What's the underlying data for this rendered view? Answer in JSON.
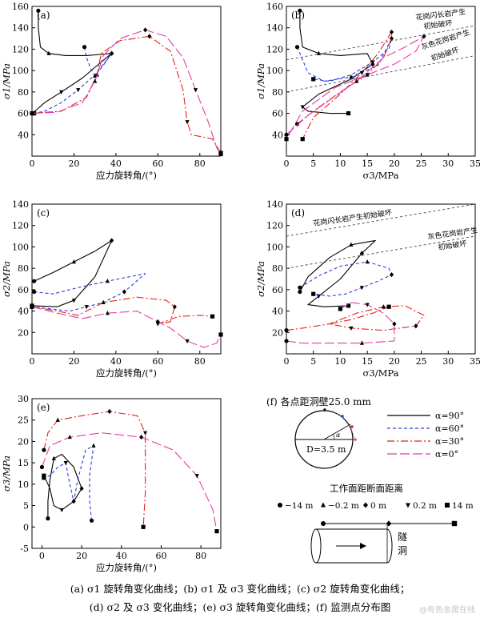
{
  "colors": {
    "a90": "#000000",
    "a60": "#2b3bdc",
    "a30": "#e0231c",
    "a0": "#e63aa8"
  },
  "chart_data": [
    {
      "id": "a",
      "type": "line",
      "panel_label": "(a)",
      "xlabel": "应力旋转角/(°)",
      "ylabel": "σ1/MPa",
      "xlim": [
        0,
        90
      ],
      "ylim": [
        20,
        160
      ],
      "xticks": [
        0,
        20,
        40,
        60,
        80
      ],
      "yticks": [
        40,
        60,
        80,
        100,
        120,
        140,
        160
      ],
      "series": [
        {
          "name": "α=90°",
          "points": [
            [
              3,
              156
            ],
            [
              3,
              140
            ],
            [
              4,
              122
            ],
            [
              8,
              116
            ],
            [
              16,
              114
            ],
            [
              26,
              114
            ],
            [
              38,
              116
            ],
            [
              33,
              108
            ],
            [
              24,
              93
            ],
            [
              14,
              80
            ],
            [
              6,
              70
            ],
            [
              2,
              63
            ],
            [
              0,
              60
            ]
          ]
        },
        {
          "name": "α=60°",
          "points": [
            [
              25,
              122
            ],
            [
              26,
              112
            ],
            [
              28,
              102
            ],
            [
              30,
              95
            ],
            [
              34,
              105
            ],
            [
              38,
              116
            ],
            [
              30,
              96
            ],
            [
              22,
              82
            ],
            [
              14,
              70
            ],
            [
              6,
              62
            ],
            [
              1,
              60
            ]
          ]
        },
        {
          "name": "α=30°",
          "points": [
            [
              0,
              60
            ],
            [
              14,
              62
            ],
            [
              26,
              75
            ],
            [
              31,
              96
            ],
            [
              33,
              116
            ],
            [
              42,
              128
            ],
            [
              56,
              132
            ],
            [
              66,
              118
            ],
            [
              72,
              82
            ],
            [
              74,
              52
            ],
            [
              76,
              40
            ],
            [
              86,
              36
            ],
            [
              90,
              23
            ]
          ]
        },
        {
          "name": "α=0°",
          "points": [
            [
              0,
              60
            ],
            [
              12,
              61
            ],
            [
              24,
              70
            ],
            [
              30,
              90
            ],
            [
              34,
              114
            ],
            [
              42,
              130
            ],
            [
              54,
              138
            ],
            [
              64,
              132
            ],
            [
              72,
              112
            ],
            [
              78,
              82
            ],
            [
              84,
              52
            ],
            [
              88,
              28
            ],
            [
              90,
              22
            ]
          ]
        }
      ]
    },
    {
      "id": "b",
      "type": "line",
      "panel_label": "(b)",
      "xlabel": "σ3/MPa",
      "ylabel": "σ1/MPa",
      "xlim": [
        0,
        35
      ],
      "ylim": [
        20,
        160
      ],
      "xticks": [
        0,
        5,
        10,
        15,
        20,
        25,
        30,
        35
      ],
      "yticks": [
        40,
        60,
        80,
        100,
        120,
        140,
        160
      ],
      "annotations": [
        "花岗闪长岩产生",
        "初始破坏",
        "灰色花岗岩产生",
        "初始破坏"
      ],
      "series": [
        {
          "name": "α=90°",
          "points": [
            [
              2.5,
              156
            ],
            [
              2.5,
              140
            ],
            [
              3,
              122
            ],
            [
              6,
              116
            ],
            [
              10,
              114
            ],
            [
              15,
              116
            ],
            [
              16,
              106
            ],
            [
              12,
              92
            ],
            [
              6,
              78
            ],
            [
              3,
              66
            ],
            [
              4,
              62
            ],
            [
              8,
              60
            ],
            [
              11.5,
              60
            ]
          ]
        },
        {
          "name": "α=60°",
          "points": [
            [
              2,
              122
            ],
            [
              4,
              98
            ],
            [
              7,
              90
            ],
            [
              12,
              94
            ],
            [
              17,
              105
            ],
            [
              19.5,
              130
            ],
            [
              19,
              120
            ],
            [
              16,
              108
            ],
            [
              12,
              96
            ],
            [
              8,
              90
            ],
            [
              5,
              92
            ]
          ]
        },
        {
          "name": "α=30°",
          "points": [
            [
              2,
              50
            ],
            [
              5,
              62
            ],
            [
              10,
              80
            ],
            [
              15,
              96
            ],
            [
              18,
              112
            ],
            [
              19.5,
              130
            ],
            [
              19.5,
              136
            ],
            [
              17,
              116
            ],
            [
              14,
              98
            ],
            [
              10,
              78
            ],
            [
              5,
              56
            ],
            [
              3,
              36
            ]
          ]
        },
        {
          "name": "α=0°",
          "points": [
            [
              0,
              40
            ],
            [
              4,
              58
            ],
            [
              9,
              76
            ],
            [
              13,
              90
            ],
            [
              18,
              112
            ],
            [
              22,
              122
            ],
            [
              25.5,
              132
            ],
            [
              24,
              118
            ],
            [
              20,
              106
            ],
            [
              15,
              96
            ],
            [
              9,
              84
            ],
            [
              3,
              62
            ],
            [
              0,
              36
            ]
          ]
        }
      ]
    },
    {
      "id": "c",
      "type": "line",
      "panel_label": "(c)",
      "xlabel": "应力旋转角/(°)",
      "ylabel": "σ2/MPa",
      "xlim": [
        0,
        90
      ],
      "ylim": [
        0,
        140
      ],
      "xticks": [
        0,
        20,
        40,
        60,
        80
      ],
      "yticks": [
        20,
        40,
        60,
        80,
        100,
        120,
        140
      ],
      "series": [
        {
          "name": "α=90°",
          "points": [
            [
              1,
              68
            ],
            [
              10,
              76
            ],
            [
              20,
              86
            ],
            [
              30,
              96
            ],
            [
              38,
              106
            ],
            [
              30,
              72
            ],
            [
              20,
              50
            ],
            [
              12,
              44
            ],
            [
              0,
              45
            ]
          ]
        },
        {
          "name": "α=60°",
          "points": [
            [
              1,
              58
            ],
            [
              10,
              56
            ],
            [
              22,
              62
            ],
            [
              36,
              68
            ],
            [
              54,
              75
            ],
            [
              44,
              58
            ],
            [
              34,
              48
            ],
            [
              26,
              44
            ],
            [
              18,
              40
            ],
            [
              0,
              44
            ]
          ]
        },
        {
          "name": "α=30°",
          "points": [
            [
              0,
              44
            ],
            [
              12,
              40
            ],
            [
              22,
              36
            ],
            [
              34,
              48
            ],
            [
              50,
              53
            ],
            [
              64,
              50
            ],
            [
              68,
              44
            ],
            [
              66,
              30
            ],
            [
              60,
              28
            ],
            [
              70,
              35
            ],
            [
              80,
              36
            ],
            [
              86,
              35
            ]
          ]
        },
        {
          "name": "α=0°",
          "points": [
            [
              0,
              44
            ],
            [
              12,
              38
            ],
            [
              24,
              33
            ],
            [
              36,
              38
            ],
            [
              50,
              40
            ],
            [
              60,
              30
            ],
            [
              66,
              24
            ],
            [
              74,
              12
            ],
            [
              82,
              6
            ],
            [
              88,
              10
            ],
            [
              90,
              18
            ]
          ]
        }
      ]
    },
    {
      "id": "d",
      "type": "line",
      "panel_label": "(d)",
      "xlabel": "σ3/MPa",
      "ylabel": "σ2/MPa",
      "xlim": [
        0,
        35
      ],
      "ylim": [
        0,
        140
      ],
      "xticks": [
        0,
        5,
        10,
        15,
        20,
        25,
        30,
        35
      ],
      "yticks": [
        20,
        40,
        60,
        80,
        100,
        120,
        140
      ],
      "annotations": [
        "花岗闪长岩产生初始破坏",
        "灰色花岗岩产生",
        "初始破坏"
      ],
      "series": [
        {
          "name": "α=90°",
          "points": [
            [
              2.5,
              58
            ],
            [
              4,
              72
            ],
            [
              8,
              90
            ],
            [
              12,
              102
            ],
            [
              16.5,
              106
            ],
            [
              14,
              94
            ],
            [
              10,
              70
            ],
            [
              6,
              54
            ],
            [
              4,
              46
            ],
            [
              7,
              44
            ],
            [
              11.5,
              45
            ]
          ]
        },
        {
          "name": "α=60°",
          "points": [
            [
              2.5,
              62
            ],
            [
              6,
              73
            ],
            [
              10,
              82
            ],
            [
              15,
              86
            ],
            [
              19,
              80
            ],
            [
              19.5,
              74
            ],
            [
              17,
              68
            ],
            [
              14,
              62
            ],
            [
              11,
              56
            ],
            [
              8,
              54
            ],
            [
              5,
              56
            ]
          ]
        },
        {
          "name": "α=30°",
          "points": [
            [
              0,
              22
            ],
            [
              3,
              24
            ],
            [
              8,
              28
            ],
            [
              13,
              38
            ],
            [
              18,
              44
            ],
            [
              22,
              45
            ],
            [
              25.5,
              36
            ],
            [
              24,
              26
            ],
            [
              18,
              22
            ],
            [
              12,
              24
            ],
            [
              8,
              28
            ],
            [
              12,
              32
            ],
            [
              16,
              38
            ],
            [
              19,
              44
            ]
          ]
        },
        {
          "name": "α=0°",
          "points": [
            [
              0,
              12
            ],
            [
              3,
              10
            ],
            [
              8,
              10
            ],
            [
              14,
              10
            ],
            [
              20,
              12
            ],
            [
              20,
              28
            ],
            [
              18,
              38
            ],
            [
              15,
              46
            ],
            [
              12,
              48
            ],
            [
              10,
              42
            ]
          ]
        }
      ]
    },
    {
      "id": "e",
      "type": "line",
      "panel_label": "(e)",
      "xlabel": "应力旋转角/(°)",
      "ylabel": "σ3/MPa",
      "xlim": [
        -5,
        90
      ],
      "ylim": [
        -5,
        30
      ],
      "xticks": [
        0,
        20,
        40,
        60,
        80
      ],
      "yticks": [
        -5,
        0,
        5,
        10,
        15,
        20,
        25,
        30
      ],
      "series": [
        {
          "name": "α=90°",
          "points": [
            [
              3,
              2
            ],
            [
              3,
              6
            ],
            [
              4,
              11
            ],
            [
              6,
              16
            ],
            [
              10,
              17
            ],
            [
              16,
              14
            ],
            [
              20,
              9
            ],
            [
              16,
              6
            ],
            [
              10,
              4
            ],
            [
              6,
              5
            ],
            [
              4,
              9
            ],
            [
              1,
              12
            ]
          ]
        },
        {
          "name": "α=60°",
          "points": [
            [
              25,
              1.5
            ],
            [
              24,
              6
            ],
            [
              24,
              12
            ],
            [
              26,
              19
            ],
            [
              22,
              18
            ],
            [
              18,
              11
            ],
            [
              16,
              6
            ],
            [
              14,
              10
            ],
            [
              12,
              15
            ],
            [
              8,
              14
            ],
            [
              4,
              12
            ],
            [
              1,
              11.5
            ]
          ]
        },
        {
          "name": "α=30°",
          "points": [
            [
              1,
              18
            ],
            [
              3,
              22
            ],
            [
              8,
              25
            ],
            [
              20,
              26
            ],
            [
              34,
              27
            ],
            [
              48,
              26
            ],
            [
              52,
              22
            ],
            [
              52,
              8
            ],
            [
              51,
              0
            ]
          ]
        },
        {
          "name": "α=0°",
          "points": [
            [
              0,
              14
            ],
            [
              4,
              19
            ],
            [
              14,
              21
            ],
            [
              30,
              22
            ],
            [
              50,
              21
            ],
            [
              66,
              18
            ],
            [
              78,
              12
            ],
            [
              86,
              4
            ],
            [
              88,
              -1
            ]
          ]
        }
      ]
    }
  ],
  "panel_f": {
    "label": "(f)",
    "title": "各点距洞壁25.0 mm",
    "diameter": "D=3.5 m",
    "alpha": "α",
    "legend": [
      "α=90°",
      "α=60°",
      "α=30°",
      "α=0°"
    ],
    "markers_title": "工作面距断面距离",
    "markers": [
      "−14 m",
      "−0.2 m",
      "0 m",
      "0.2 m",
      "14 m"
    ],
    "tunnel_label_1": "隧",
    "tunnel_label_2": "洞"
  },
  "caption_line1": "(a) σ1 旋转角变化曲线；(b) σ1 及 σ3 变化曲线；(c) σ2 旋转角变化曲线；",
  "caption_line2": "(d) σ2 及 σ3 变化曲线；(e) σ3 旋转角变化曲线；(f) 监测点分布图",
  "watermark": "@有色金属在线"
}
